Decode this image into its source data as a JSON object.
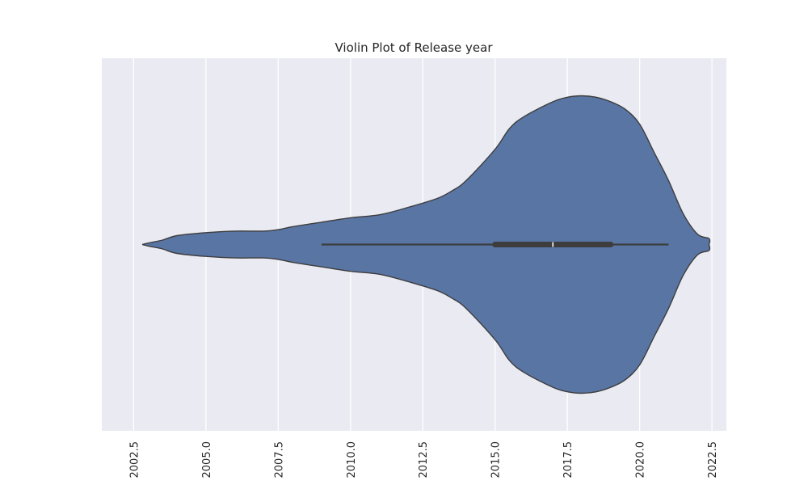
{
  "chart_data": {
    "type": "violin",
    "title": "Violin Plot of Release year",
    "xlabel": "",
    "ylabel": "",
    "orientation": "horizontal",
    "xlim": [
      2001.4,
      2023.0
    ],
    "xticks": [
      2002.5,
      2005.0,
      2007.5,
      2010.0,
      2012.5,
      2015.0,
      2017.5,
      2020.0,
      2022.5
    ],
    "xtick_labels": [
      "2002.5",
      "2005.0",
      "2007.5",
      "2010.0",
      "2012.5",
      "2015.0",
      "2017.5",
      "2020.0",
      "2022.5"
    ],
    "grid": true,
    "background_color": "#eaeaf2",
    "violin_color": "#5975a4",
    "edge_color": "#3d3d3d",
    "density": {
      "x": [
        2002.8,
        2003.0,
        2003.5,
        2004.0,
        2005.0,
        2006.0,
        2007.0,
        2007.5,
        2008.0,
        2009.0,
        2010.0,
        2011.0,
        2012.0,
        2013.0,
        2013.5,
        2014.0,
        2015.0,
        2015.5,
        2016.0,
        2017.0,
        2017.5,
        2018.0,
        2018.5,
        2019.0,
        2019.5,
        2020.0,
        2020.5,
        2021.0,
        2021.5,
        2022.0,
        2022.4,
        2022.4
      ],
      "width": [
        0.0,
        0.01,
        0.03,
        0.06,
        0.08,
        0.09,
        0.09,
        0.1,
        0.12,
        0.15,
        0.18,
        0.2,
        0.25,
        0.31,
        0.36,
        0.43,
        0.64,
        0.78,
        0.86,
        0.96,
        0.99,
        1.0,
        0.99,
        0.96,
        0.91,
        0.81,
        0.62,
        0.43,
        0.21,
        0.07,
        0.04,
        0.0
      ]
    },
    "box": {
      "whisker_low": 2009.0,
      "q1": 2015.0,
      "median": 2017.0,
      "q3": 2019.0,
      "whisker_high": 2021.0
    }
  }
}
